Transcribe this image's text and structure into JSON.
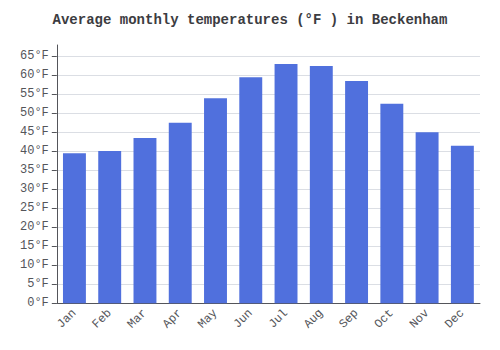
{
  "chart_data": {
    "type": "bar",
    "title": "Average monthly temperatures (°F ) in Beckenham",
    "categories": [
      "Jan",
      "Feb",
      "Mar",
      "Apr",
      "May",
      "Jun",
      "Jul",
      "Aug",
      "Sep",
      "Oct",
      "Nov",
      "Dec"
    ],
    "values": [
      39.5,
      40.1,
      43.5,
      47.5,
      54.0,
      59.5,
      63.0,
      62.5,
      58.5,
      52.5,
      45.0,
      41.5
    ],
    "ylim": [
      0,
      68
    ],
    "yticks": [
      {
        "value": 0,
        "label": "0°F"
      },
      {
        "value": 5,
        "label": "5°F"
      },
      {
        "value": 10,
        "label": "10°F"
      },
      {
        "value": 15,
        "label": "15°F"
      },
      {
        "value": 20,
        "label": "20°F"
      },
      {
        "value": 25,
        "label": "25°F"
      },
      {
        "value": 30,
        "label": "30°F"
      },
      {
        "value": 35,
        "label": "35°F"
      },
      {
        "value": 40,
        "label": "40°F"
      },
      {
        "value": 45,
        "label": "45°F"
      },
      {
        "value": 50,
        "label": "50°F"
      },
      {
        "value": 55,
        "label": "55°F"
      },
      {
        "value": 60,
        "label": "60°F"
      },
      {
        "value": 65,
        "label": "65°F"
      }
    ],
    "grid": true
  }
}
